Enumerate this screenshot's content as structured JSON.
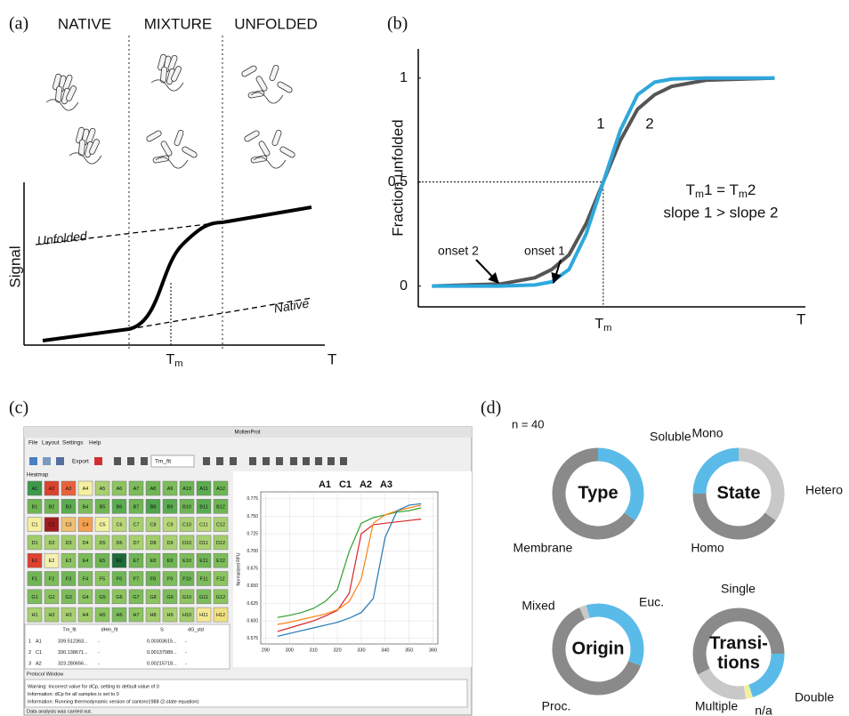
{
  "panel_a": {
    "label": "(a)",
    "phases": [
      "NATIVE",
      "MIXTURE",
      "UNFOLDED"
    ],
    "y_label": "Signal",
    "x_label": "T",
    "tm": {
      "main": "T",
      "sub": "m"
    },
    "unfolded_label": "Unfolded",
    "native_label": "Native"
  },
  "panel_b": {
    "label": "(b)",
    "y_label": "Fraction unfolded",
    "x_label": "T",
    "xlim": [
      -0.4,
      10.9
    ],
    "ylim": [
      -0.1,
      1.14
    ],
    "yticks": [
      0,
      0.5,
      1
    ],
    "tm": {
      "value": 5,
      "main": "T",
      "sub": "m"
    },
    "x": [
      0,
      2,
      3,
      3.5,
      4,
      4.5,
      5,
      5.5,
      6,
      6.5,
      7,
      8,
      10
    ],
    "curves": [
      {
        "name": "1",
        "color": "#2ea8dc",
        "values": [
          0,
          0,
          0.005,
          0.02,
          0.08,
          0.25,
          0.5,
          0.75,
          0.92,
          0.98,
          0.995,
          1,
          1
        ]
      },
      {
        "name": "2",
        "color": "#555555",
        "values": [
          0,
          0.01,
          0.04,
          0.08,
          0.15,
          0.3,
          0.5,
          0.7,
          0.85,
          0.92,
          0.96,
          0.99,
          1
        ]
      }
    ],
    "onsets": [
      "onset 2",
      "onset 1"
    ],
    "eq1": [
      {
        "text": "T"
      },
      {
        "text": "m",
        "sub": true
      },
      {
        "text": "1 = T"
      },
      {
        "text": "m",
        "sub": true
      },
      {
        "text": "2"
      }
    ],
    "eq2": "slope 1 > slope 2"
  },
  "panel_c": {
    "label": "(c)",
    "window_title": "MoltenProt",
    "menu": [
      "File",
      "Layout",
      "Settings",
      "Help"
    ],
    "export": "Export",
    "dropdown": "Tm_fit",
    "heatmap_title": "Heatmap",
    "wells": [
      {
        "labels": [
          "A1",
          "A2",
          "A3",
          "A4",
          "A5",
          "A6",
          "A7",
          "A8",
          "A9",
          "A10",
          "A11",
          "A12"
        ],
        "colors": [
          "#3a9a4a",
          "#d9432f",
          "#e8613c",
          "#f5f0a0",
          "#a8d070",
          "#8cc460",
          "#7cbc5a",
          "#6fb554",
          "#7cbc5a",
          "#6fb554",
          "#5aac50",
          "#6fb554"
        ]
      },
      {
        "labels": [
          "B1",
          "B2",
          "B3",
          "B4",
          "B5",
          "B6",
          "B7",
          "B8",
          "B9",
          "B10",
          "B11",
          "B12"
        ],
        "colors": [
          "#6fb554",
          "#6fb554",
          "#5aac50",
          "#7cbc5a",
          "#6fb554",
          "#5aac50",
          "#6fb554",
          "#4fa44c",
          "#5aac50",
          "#6fb554",
          "#5aac50",
          "#6fb554"
        ]
      },
      {
        "labels": [
          "C1",
          "C2",
          "C3",
          "C4",
          "C5",
          "C6",
          "C7",
          "C8",
          "C9",
          "C10",
          "C11",
          "C12"
        ],
        "colors": [
          "#f5f0a0",
          "#a01c1c",
          "#f0c070",
          "#f5a050",
          "#f0f0a0",
          "#b8d878",
          "#a8d070",
          "#a8d070",
          "#b8d878",
          "#a8d070",
          "#b8d878",
          "#a8d070"
        ]
      },
      {
        "labels": [
          "D1",
          "D2",
          "D3",
          "D4",
          "D5",
          "D6",
          "D7",
          "D8",
          "D9",
          "D10",
          "D11",
          "D12"
        ],
        "colors": [
          "#a0cc6a",
          "#a8d070",
          "#a0cc6a",
          "#a8d070",
          "#a0cc6a",
          "#a0cc6a",
          "#a8d070",
          "#a0cc6a",
          "#a8d070",
          "#a0cc6a",
          "#a8d070",
          "#a0cc6a"
        ]
      },
      {
        "labels": [
          "E1",
          "E2",
          "E3",
          "E4",
          "E5",
          "E6",
          "E7",
          "E8",
          "E9",
          "E10",
          "E11",
          "E12"
        ],
        "colors": [
          "#e0402d",
          "#f5f0b0",
          "#8cc460",
          "#7cbc5a",
          "#6fb554",
          "#1e6a38",
          "#6fb554",
          "#7cbc5a",
          "#6fb554",
          "#7cbc5a",
          "#6fb554",
          "#7cbc5a"
        ]
      },
      {
        "labels": [
          "F1",
          "F2",
          "F3",
          "F4",
          "F5",
          "F6",
          "F7",
          "F8",
          "F9",
          "F10",
          "F11",
          "F12"
        ],
        "colors": [
          "#6fb554",
          "#7cbc5a",
          "#6fb554",
          "#7cbc5a",
          "#8cc460",
          "#6fb554",
          "#7cbc5a",
          "#6fb554",
          "#7cbc5a",
          "#6fb554",
          "#7cbc5a",
          "#8cc460"
        ]
      },
      {
        "labels": [
          "G1",
          "G2",
          "G3",
          "G4",
          "G5",
          "G6",
          "G7",
          "G8",
          "G9",
          "G10",
          "G11",
          "G12"
        ],
        "colors": [
          "#7cbc5a",
          "#8cc460",
          "#7cbc5a",
          "#8cc460",
          "#7cbc5a",
          "#8cc460",
          "#7cbc5a",
          "#8cc460",
          "#7cbc5a",
          "#8cc460",
          "#7cbc5a",
          "#8cc460"
        ]
      },
      {
        "labels": [
          "H1",
          "H2",
          "H3",
          "H4",
          "H5",
          "H6",
          "H7",
          "H8",
          "H9",
          "H10",
          "H11",
          "H12"
        ],
        "colors": [
          "#a8d070",
          "#a0cc6a",
          "#a8d070",
          "#a0cc6a",
          "#8cc460",
          "#7cbc5a",
          "#8cc460",
          "#a0cc6a",
          "#a8d070",
          "#a0cc6a",
          "#f5e890",
          "#f0e080"
        ]
      }
    ],
    "table": {
      "headers": [
        "Tm_fit",
        "dHm_fit",
        "S",
        "dG_std"
      ],
      "rows": [
        [
          "1",
          "A1",
          "339.512363...",
          "-",
          "0.00303615...",
          "-"
        ],
        [
          "2",
          "C1",
          "330.138671...",
          "-",
          "0.00137089...",
          "-"
        ],
        [
          "3",
          "A2",
          "323.280656...",
          "-",
          "0.00215718...",
          "-"
        ]
      ]
    },
    "plot": {
      "y_label": "Normalized RFU",
      "xlim": [
        288,
        362
      ],
      "ylim": [
        0.567,
        0.785
      ],
      "xticks": [
        290,
        300,
        310,
        320,
        330,
        340,
        350,
        360
      ],
      "yticks": [
        0.575,
        {
          "value": 0.6,
          "label": "0.600"
        },
        0.625,
        {
          "value": 0.65,
          "label": "0.650"
        },
        0.675,
        {
          "value": 0.7,
          "label": "0.700"
        },
        0.725,
        {
          "value": 0.75,
          "label": "0.750"
        },
        0.775
      ],
      "grid": true,
      "x": [
        295,
        300,
        305,
        310,
        315,
        320,
        325,
        330,
        335,
        340,
        345,
        350,
        355
      ],
      "series": [
        {
          "name": "A1",
          "color": "#2ca02c",
          "values": [
            0.605,
            0.608,
            0.612,
            0.618,
            0.628,
            0.645,
            0.7,
            0.74,
            0.748,
            0.752,
            0.756,
            0.758,
            0.762
          ]
        },
        {
          "name": "C1",
          "color": "#d62728",
          "values": [
            0.585,
            0.59,
            0.595,
            0.6,
            0.607,
            0.615,
            0.64,
            0.725,
            0.738,
            0.74,
            0.742,
            0.744,
            0.746
          ]
        },
        {
          "name": "A2",
          "color": "#ff7f0e",
          "values": [
            0.595,
            0.598,
            0.602,
            0.606,
            0.61,
            0.616,
            0.628,
            0.66,
            0.74,
            0.752,
            0.758,
            0.762,
            0.766
          ]
        },
        {
          "name": "A3",
          "color": "#1f77b4",
          "values": [
            0.578,
            0.582,
            0.586,
            0.59,
            0.594,
            0.598,
            0.604,
            0.612,
            0.632,
            0.72,
            0.758,
            0.766,
            0.768
          ]
        }
      ]
    },
    "protocol_title": "Protocol Window",
    "messages": [
      "Warning: Incorrect value for dCp, setting to default value of 0",
      "Information: dCp for all samples is set to 0",
      "Information: Running thermodynamic version of santoro1988 (2-state equation)"
    ],
    "status": "Data analysis was carried out."
  },
  "panel_d": {
    "label": "(d)",
    "n_label": "n = 40",
    "donuts": [
      {
        "center": [
          "Type"
        ],
        "segments": [
          {
            "name": "Soluble",
            "value": 14,
            "color": "#5bbbe8"
          },
          {
            "name": "Membrane",
            "value": 26,
            "color": "#8a8a8a"
          }
        ]
      },
      {
        "center": [
          "State"
        ],
        "segments": [
          {
            "name": "Hetero",
            "value": 14,
            "color": "#c8c8c8"
          },
          {
            "name": "Homo",
            "value": 16,
            "color": "#8a8a8a"
          },
          {
            "name": "Mono",
            "value": 10,
            "color": "#5bbbe8"
          }
        ]
      },
      {
        "center": [
          "Origin"
        ],
        "segments": [
          {
            "name": "Euc.",
            "value": 14,
            "color": "#5bbbe8"
          },
          {
            "name": "Proc.",
            "value": 25,
            "color": "#8a8a8a"
          },
          {
            "name": "Mixed",
            "value": 1,
            "color": "#c8c8c8"
          }
        ]
      },
      {
        "center": [
          "Transi-",
          "tions"
        ],
        "segments": [
          {
            "name": "Double",
            "value": 8,
            "color": "#5bbbe8"
          },
          {
            "name": "n/a",
            "value": 1,
            "color": "#f0f0a0"
          },
          {
            "name": "Multiple",
            "value": 8,
            "color": "#c8c8c8"
          },
          {
            "name": "Single",
            "value": 23,
            "color": "#8a8a8a"
          }
        ]
      }
    ]
  }
}
